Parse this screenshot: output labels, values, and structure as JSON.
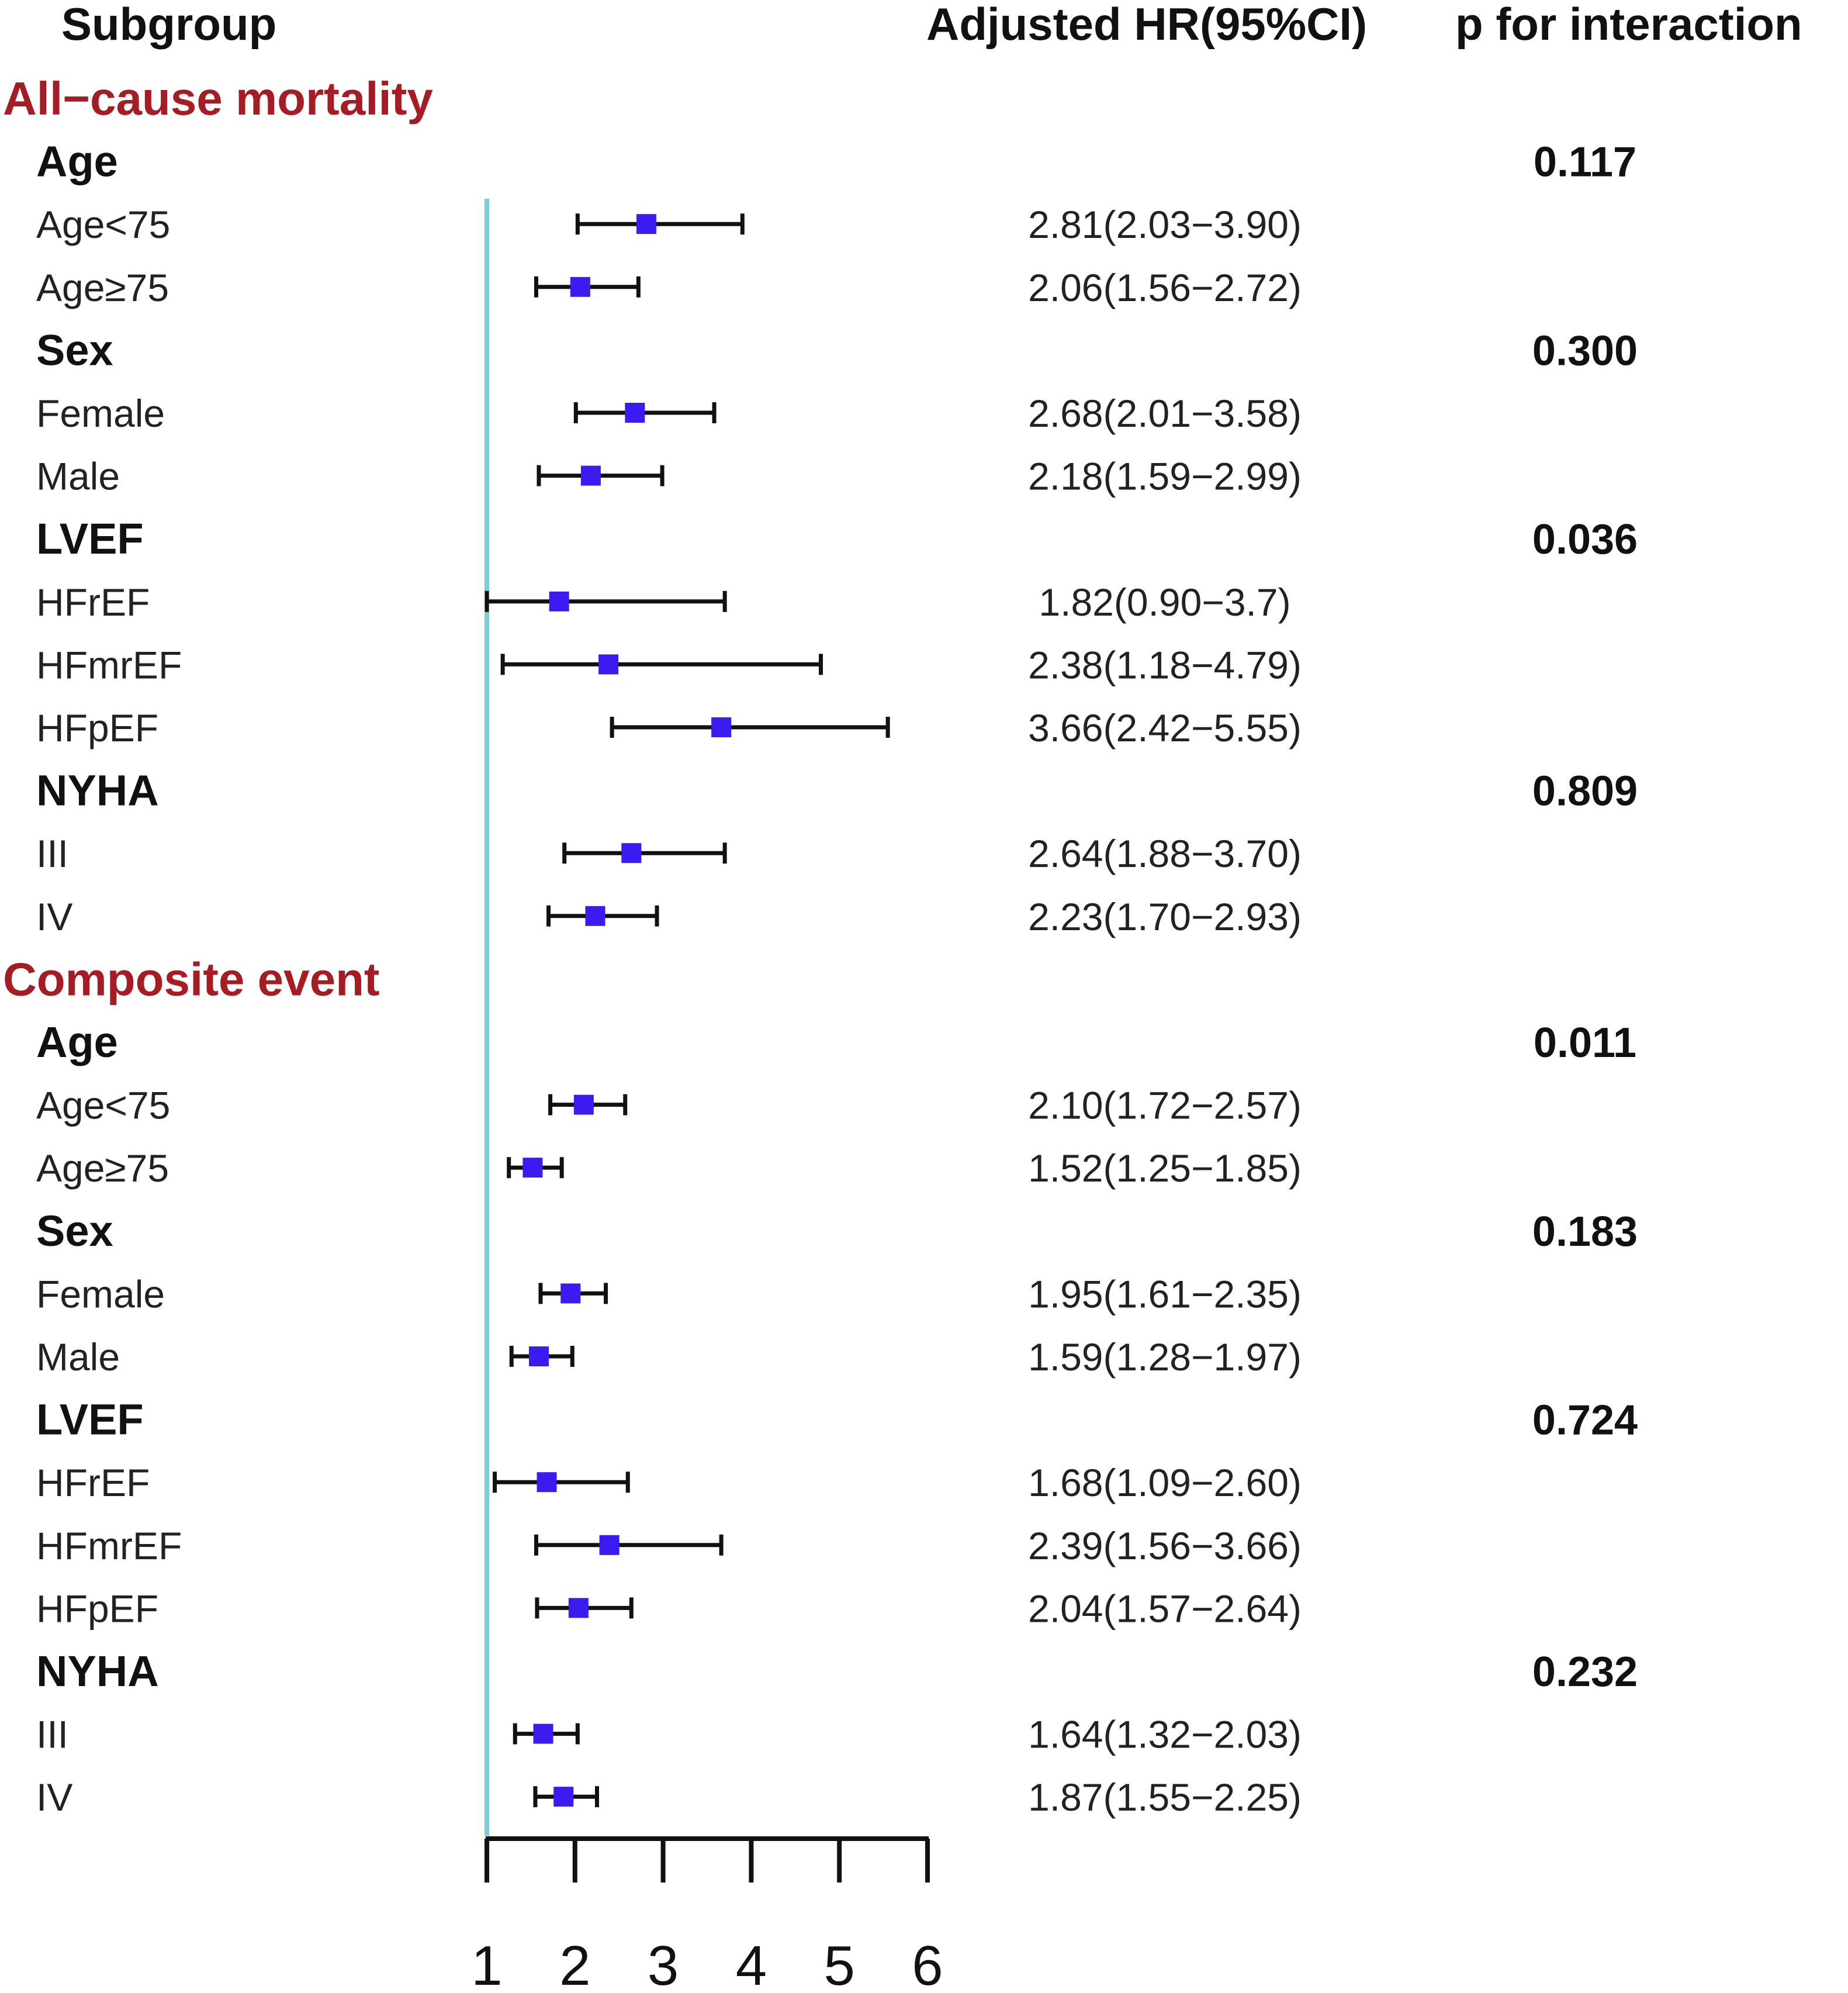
{
  "headers": {
    "subgroup": "Subgroup",
    "hr": "Adjusted HR(95%CI)",
    "p": "p for interaction"
  },
  "colors": {
    "section": "#a51c24",
    "point": "#3a1cf0",
    "ci": "#111111",
    "reference_line": "#7ccdd6"
  },
  "chart_data": {
    "type": "forest",
    "x_axis": {
      "range": [
        1,
        6
      ],
      "ticks": [
        "1",
        "2",
        "3",
        "4",
        "5",
        "6"
      ],
      "reference_value": 1
    },
    "rows": [
      {
        "kind": "section",
        "label": "All−cause mortality"
      },
      {
        "kind": "category",
        "label": "Age",
        "p": "0.117"
      },
      {
        "kind": "subgroup",
        "label": "Age<75",
        "hr": 2.81,
        "lo": 2.03,
        "hi": 3.9,
        "text": "2.81(2.03−3.90)"
      },
      {
        "kind": "subgroup",
        "label": "Age≥75",
        "hr": 2.06,
        "lo": 1.56,
        "hi": 2.72,
        "text": "2.06(1.56−2.72)"
      },
      {
        "kind": "category",
        "label": "Sex",
        "p": "0.300"
      },
      {
        "kind": "subgroup",
        "label": "Female",
        "hr": 2.68,
        "lo": 2.01,
        "hi": 3.58,
        "text": "2.68(2.01−3.58)"
      },
      {
        "kind": "subgroup",
        "label": "Male",
        "hr": 2.18,
        "lo": 1.59,
        "hi": 2.99,
        "text": "2.18(1.59−2.99)"
      },
      {
        "kind": "category",
        "label": "LVEF",
        "p": "0.036"
      },
      {
        "kind": "subgroup",
        "label": "HFrEF",
        "hr": 1.82,
        "lo": 0.9,
        "hi": 3.7,
        "text": "1.82(0.90−3.7)"
      },
      {
        "kind": "subgroup",
        "label": "HFmrEF",
        "hr": 2.38,
        "lo": 1.18,
        "hi": 4.79,
        "text": "2.38(1.18−4.79)"
      },
      {
        "kind": "subgroup",
        "label": "HFpEF",
        "hr": 3.66,
        "lo": 2.42,
        "hi": 5.55,
        "text": "3.66(2.42−5.55)"
      },
      {
        "kind": "category",
        "label": "NYHA",
        "p": "0.809"
      },
      {
        "kind": "subgroup",
        "label": "III",
        "hr": 2.64,
        "lo": 1.88,
        "hi": 3.7,
        "text": "2.64(1.88−3.70)"
      },
      {
        "kind": "subgroup",
        "label": "IV",
        "hr": 2.23,
        "lo": 1.7,
        "hi": 2.93,
        "text": "2.23(1.70−2.93)"
      },
      {
        "kind": "section",
        "label": "Composite event"
      },
      {
        "kind": "category",
        "label": "Age",
        "p": "0.011"
      },
      {
        "kind": "subgroup",
        "label": "Age<75",
        "hr": 2.1,
        "lo": 1.72,
        "hi": 2.57,
        "text": "2.10(1.72−2.57)"
      },
      {
        "kind": "subgroup",
        "label": "Age≥75",
        "hr": 1.52,
        "lo": 1.25,
        "hi": 1.85,
        "text": "1.52(1.25−1.85)"
      },
      {
        "kind": "category",
        "label": "Sex",
        "p": "0.183"
      },
      {
        "kind": "subgroup",
        "label": "Female",
        "hr": 1.95,
        "lo": 1.61,
        "hi": 2.35,
        "text": "1.95(1.61−2.35)"
      },
      {
        "kind": "subgroup",
        "label": "Male",
        "hr": 1.59,
        "lo": 1.28,
        "hi": 1.97,
        "text": "1.59(1.28−1.97)"
      },
      {
        "kind": "category",
        "label": "LVEF",
        "p": "0.724"
      },
      {
        "kind": "subgroup",
        "label": "HFrEF",
        "hr": 1.68,
        "lo": 1.09,
        "hi": 2.6,
        "text": "1.68(1.09−2.60)"
      },
      {
        "kind": "subgroup",
        "label": "HFmrEF",
        "hr": 2.39,
        "lo": 1.56,
        "hi": 3.66,
        "text": "2.39(1.56−3.66)"
      },
      {
        "kind": "subgroup",
        "label": "HFpEF",
        "hr": 2.04,
        "lo": 1.57,
        "hi": 2.64,
        "text": "2.04(1.57−2.64)"
      },
      {
        "kind": "category",
        "label": "NYHA",
        "p": "0.232"
      },
      {
        "kind": "subgroup",
        "label": "III",
        "hr": 1.64,
        "lo": 1.32,
        "hi": 2.03,
        "text": "1.64(1.32−2.03)"
      },
      {
        "kind": "subgroup",
        "label": "IV",
        "hr": 1.87,
        "lo": 1.55,
        "hi": 2.25,
        "text": "1.87(1.55−2.25)"
      }
    ]
  }
}
